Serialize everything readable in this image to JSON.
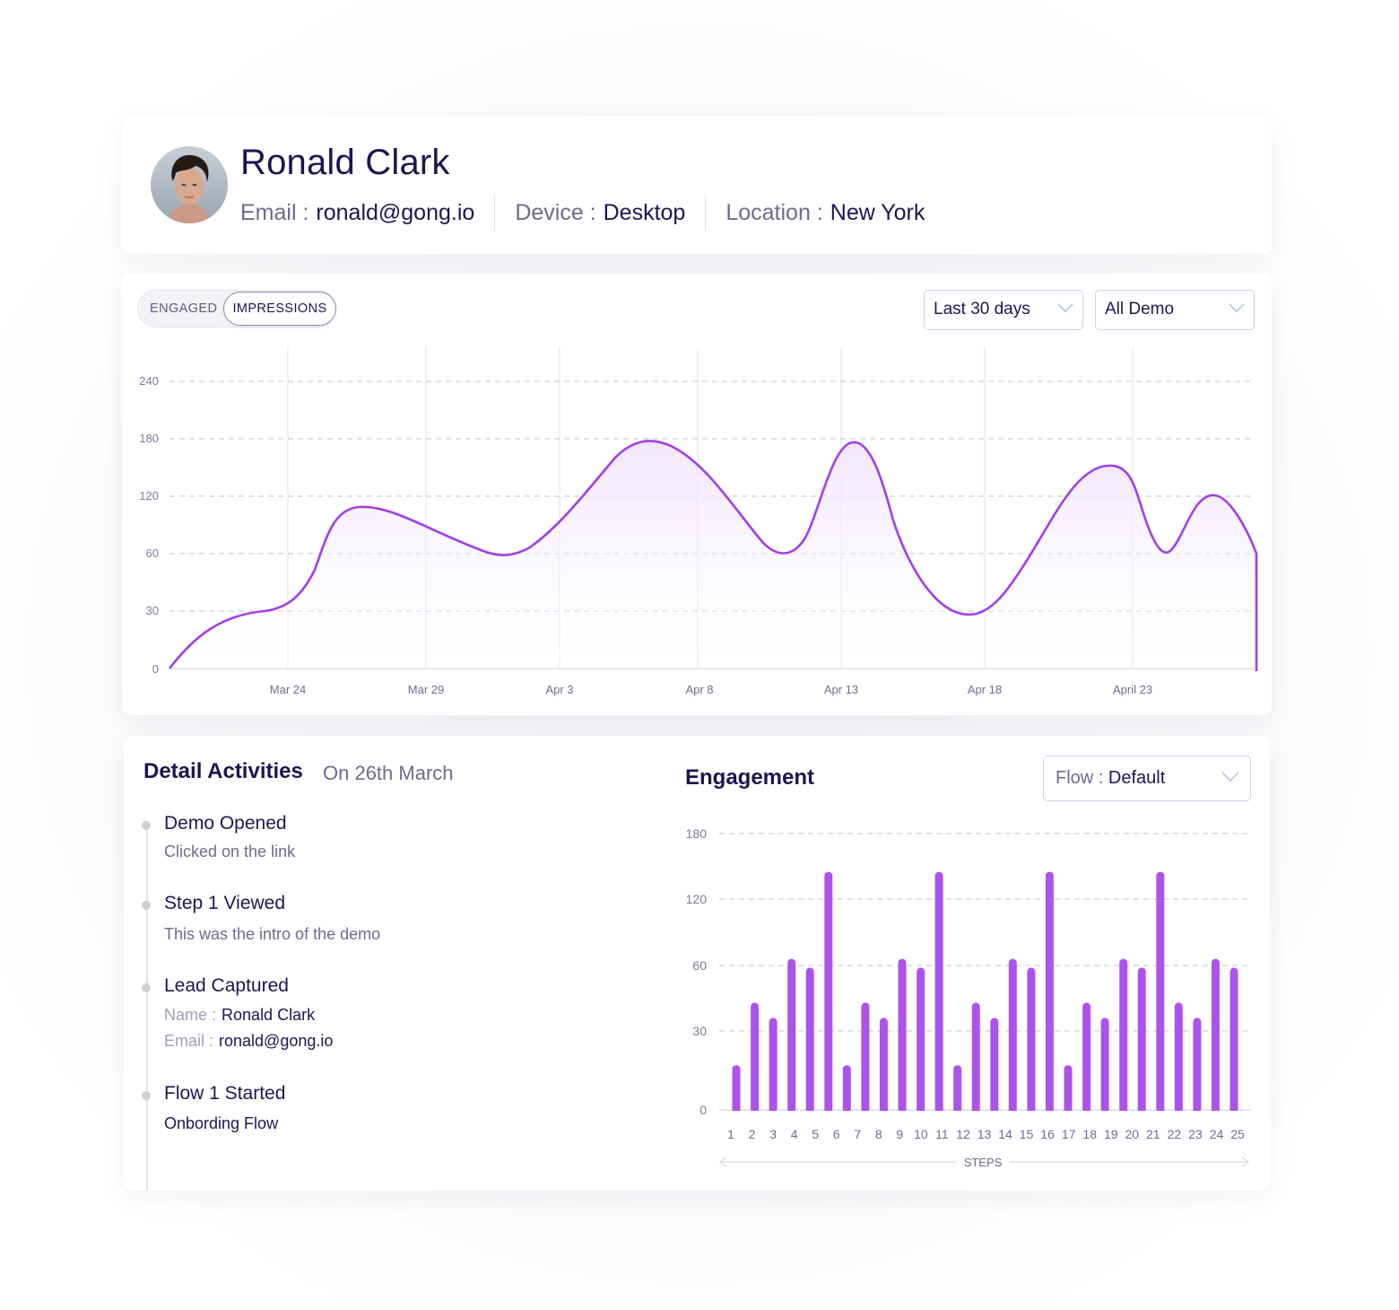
{
  "profile": {
    "name": "Ronald Clark",
    "email_label": "Email :",
    "email": "ronald@gong.io",
    "device_label": "Device :",
    "device": "Desktop",
    "location_label": "Location :",
    "location": "New York",
    "avatar": "profile-photo"
  },
  "impressions_panel": {
    "toggle": {
      "options": [
        "ENGAGED",
        "IMPRESSIONS"
      ],
      "selected": "IMPRESSIONS"
    },
    "range_select": {
      "value": "Last 30 days",
      "icon": "chevron-down-icon"
    },
    "demo_select": {
      "value": "All Demo",
      "icon": "chevron-down-icon"
    }
  },
  "activities": {
    "title": "Detail Activities",
    "date": "On 26th March",
    "items": [
      {
        "title": "Demo Opened",
        "subtitle": "Clicked on the link"
      },
      {
        "title": "Step 1 Viewed",
        "subtitle": "This was the intro of the demo"
      },
      {
        "title": "Lead Captured",
        "fields": [
          {
            "label": "Name :",
            "value": "Ronald Clark"
          },
          {
            "label": "Email :",
            "value": "ronald@gong.io"
          }
        ]
      },
      {
        "title": "Flow 1 Started",
        "subtitle": "Onbording  Flow"
      }
    ]
  },
  "engagement": {
    "title": "Engagement",
    "flow_select": {
      "label": "Flow :",
      "value": "Default",
      "icon": "chevron-down-icon"
    },
    "axis_label": "STEPS"
  },
  "colors": {
    "accent": "#a64ee6",
    "bar": "#ad52ea",
    "text_primary": "#1c1650",
    "text_secondary": "#6f6a8e",
    "grid": "#d3d2dc",
    "select_border": "#c9d2ea"
  },
  "chart_data": [
    {
      "type": "area",
      "title": "Impressions",
      "xlabel": "",
      "ylabel": "",
      "y_ticks": [
        0,
        30,
        60,
        120,
        180,
        240
      ],
      "ylim": [
        0,
        240
      ],
      "x_ticks": [
        "Mar 24",
        "Mar 29",
        "Apr 3",
        "Apr 8",
        "Apr 13",
        "Apr 18",
        "April 23"
      ],
      "grid": {
        "horizontal": "dashed",
        "vertical": "solid"
      },
      "note": "y-axis ticks are evenly spaced (non-linear scale)",
      "x": [
        "Mar 20",
        "Mar 23",
        "Mar 24",
        "Mar 26",
        "Mar 31",
        "Apr 6",
        "Apr 11",
        "Apr 14",
        "Apr 17",
        "Apr 22",
        "Apr 24",
        "Apr 26",
        "Apr 28"
      ],
      "values": [
        0,
        30,
        35,
        110,
        60,
        180,
        60,
        178,
        28,
        150,
        60,
        120,
        60
      ],
      "legend": []
    },
    {
      "type": "bar",
      "title": "Engagement",
      "xlabel": "STEPS",
      "ylabel": "",
      "y_ticks": [
        0,
        30,
        60,
        120,
        180
      ],
      "ylim": [
        0,
        180
      ],
      "categories": [
        "1",
        "2",
        "3",
        "4",
        "5",
        "6",
        "7",
        "8",
        "9",
        "10",
        "11",
        "12",
        "13",
        "14",
        "15",
        "16",
        "17",
        "18",
        "19",
        "20",
        "21",
        "22",
        "23",
        "24",
        "25"
      ],
      "bar_values": [
        17,
        43,
        36,
        66,
        59,
        145,
        17,
        43,
        36,
        66,
        59,
        145,
        17,
        43,
        36,
        66,
        59,
        145,
        17,
        43,
        36,
        66,
        59,
        145,
        43,
        36,
        66,
        59
      ],
      "note": "28 bars rendered against 25 step labels; y-axis ticks evenly spaced (non-linear scale)"
    }
  ]
}
